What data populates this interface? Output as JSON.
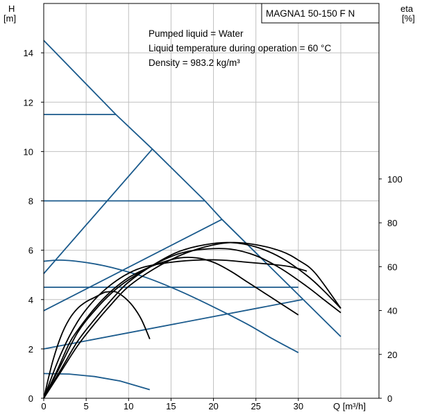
{
  "chart_data": {
    "type": "line",
    "model_label": "MAGNA1 50-150 F N",
    "annotations": [
      "Pumped liquid = Water",
      "Liquid temperature during operation = 60 °C",
      "Density = 983.2 kg/m³"
    ],
    "y_axis_left": {
      "label_line1": "H",
      "label_line2": "[m]",
      "ticks": [
        0,
        2,
        4,
        6,
        8,
        10,
        12,
        14
      ],
      "range": [
        0,
        16
      ]
    },
    "y_axis_right": {
      "label_line1": "eta",
      "label_line2": "[%]",
      "ticks": [
        0,
        20,
        40,
        60,
        80,
        100
      ],
      "range": [
        0,
        180
      ]
    },
    "x_axis": {
      "label": "Q [m³/h]",
      "ticks": [
        0,
        5,
        10,
        15,
        20,
        25,
        30
      ],
      "range": [
        0,
        39.5
      ]
    },
    "grid": true,
    "colors": {
      "head_curves": "#1a5a8c",
      "efficiency_curves": "#000000",
      "grid": "#c0c0c0"
    },
    "head_curves": [
      {
        "points": [
          [
            0,
            14.5
          ],
          [
            8.5,
            11.5
          ],
          [
            12.8,
            10.1
          ],
          [
            19,
            8.0
          ],
          [
            21,
            7.25
          ],
          [
            35,
            2.5
          ]
        ]
      },
      {
        "points": [
          [
            0,
            11.5
          ],
          [
            8.5,
            11.5
          ]
        ]
      },
      {
        "points": [
          [
            0,
            8.0
          ],
          [
            19,
            8.0
          ]
        ]
      },
      {
        "points": [
          [
            0,
            4.5
          ],
          [
            30,
            4.5
          ]
        ]
      },
      {
        "points": [
          [
            0,
            5.05
          ],
          [
            12.8,
            10.1
          ]
        ]
      },
      {
        "points": [
          [
            0,
            3.55
          ],
          [
            21,
            7.25
          ]
        ]
      },
      {
        "points": [
          [
            0,
            2.0
          ],
          [
            30.5,
            4.0
          ]
        ]
      },
      {
        "points": [
          [
            0,
            5.55
          ],
          [
            2,
            5.6
          ],
          [
            5,
            5.5
          ],
          [
            8,
            5.3
          ],
          [
            12,
            4.9
          ],
          [
            16,
            4.35
          ],
          [
            20,
            3.7
          ],
          [
            24,
            3.0
          ],
          [
            27,
            2.4
          ],
          [
            30,
            1.85
          ]
        ]
      },
      {
        "points": [
          [
            0,
            1.0
          ],
          [
            3,
            0.98
          ],
          [
            6,
            0.88
          ],
          [
            9,
            0.7
          ],
          [
            12.5,
            0.35
          ]
        ]
      }
    ],
    "efficiency_curves": [
      {
        "points": [
          [
            0,
            0
          ],
          [
            1,
            16
          ],
          [
            2,
            28
          ],
          [
            3,
            36
          ],
          [
            4,
            41
          ],
          [
            5,
            44
          ],
          [
            6,
            46
          ],
          [
            7,
            48
          ],
          [
            7.5,
            48.5
          ],
          [
            8.5,
            48.5
          ],
          [
            9.5,
            46
          ],
          [
            10.5,
            42
          ],
          [
            11.5,
            36
          ],
          [
            12.5,
            27
          ]
        ]
      },
      {
        "points": [
          [
            0,
            0
          ],
          [
            1.5,
            12
          ],
          [
            3,
            25
          ],
          [
            4,
            31
          ],
          [
            6,
            41
          ],
          [
            8,
            49
          ],
          [
            10,
            55
          ],
          [
            12,
            59
          ],
          [
            14,
            62
          ],
          [
            16,
            64
          ],
          [
            18,
            64
          ],
          [
            20,
            62
          ],
          [
            22,
            58
          ],
          [
            24,
            53
          ],
          [
            26,
            48
          ],
          [
            28,
            43
          ],
          [
            30,
            38
          ]
        ]
      },
      {
        "points": [
          [
            0,
            0
          ],
          [
            2,
            15
          ],
          [
            4,
            30
          ],
          [
            6,
            40
          ],
          [
            8,
            48
          ],
          [
            10,
            54
          ],
          [
            13,
            61
          ],
          [
            16,
            66
          ],
          [
            19,
            68
          ],
          [
            22,
            68
          ],
          [
            25,
            65
          ],
          [
            28,
            59
          ],
          [
            31,
            51
          ],
          [
            33,
            45
          ],
          [
            35,
            39
          ]
        ]
      },
      {
        "points": [
          [
            0,
            0
          ],
          [
            2,
            13
          ],
          [
            4,
            26
          ],
          [
            6,
            36
          ],
          [
            8,
            45
          ],
          [
            10,
            53
          ],
          [
            13,
            61
          ],
          [
            16,
            67
          ],
          [
            19,
            70
          ],
          [
            22,
            71
          ],
          [
            25,
            69
          ],
          [
            28,
            64
          ],
          [
            31,
            56
          ],
          [
            33,
            49
          ],
          [
            35,
            41
          ]
        ]
      },
      {
        "points": [
          [
            0,
            0
          ],
          [
            2,
            12
          ],
          [
            4,
            24
          ],
          [
            6,
            34
          ],
          [
            8,
            43
          ],
          [
            10,
            51
          ],
          [
            13,
            59
          ],
          [
            16,
            65
          ],
          [
            19,
            69
          ],
          [
            22,
            71
          ],
          [
            25,
            70
          ],
          [
            28,
            67
          ],
          [
            30,
            63
          ],
          [
            32,
            57
          ],
          [
            35,
            41
          ]
        ]
      },
      {
        "points": [
          [
            0,
            0
          ],
          [
            2,
            20
          ],
          [
            4,
            35
          ],
          [
            6,
            45
          ],
          [
            8,
            52
          ],
          [
            10,
            57
          ],
          [
            12,
            60
          ],
          [
            15,
            62
          ],
          [
            18,
            63
          ],
          [
            21,
            63
          ],
          [
            24,
            62
          ],
          [
            27,
            61
          ],
          [
            29,
            60
          ],
          [
            31,
            58
          ]
        ]
      }
    ]
  }
}
